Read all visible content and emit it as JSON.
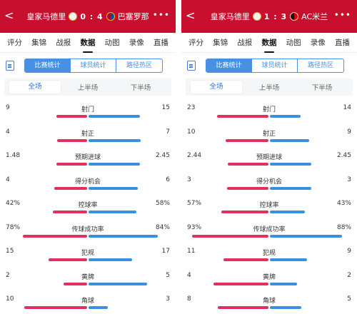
{
  "colors": {
    "header": "#c8102e",
    "home_bar": "#e0305f",
    "away_bar": "#3a8fdf",
    "accent": "#4a90e2"
  },
  "icons": {
    "back": "chevron-left-icon",
    "more": "more-dots-icon",
    "stats_doc": "document-icon"
  },
  "panels": [
    {
      "header": {
        "back": "<",
        "home": "皇家马德里",
        "score": "0 : 4",
        "away": "巴塞罗那",
        "more": "•••"
      },
      "tabs": [
        "评分",
        "集锦",
        "战报",
        "数据",
        "动图",
        "录像",
        "直播"
      ],
      "active_tab": 3,
      "subtabs": [
        "比赛统计",
        "球员统计",
        "路径热区"
      ],
      "periods": [
        "全场",
        "上半场",
        "下半场"
      ],
      "stats": [
        {
          "name": "射门",
          "home": "9",
          "away": "15",
          "home_frac": 0.375,
          "away_frac": 0.625
        },
        {
          "name": "射正",
          "home": "4",
          "away": "7",
          "home_frac": 0.364,
          "away_frac": 0.636
        },
        {
          "name": "预期进球",
          "home": "1.48",
          "away": "2.45",
          "home_frac": 0.377,
          "away_frac": 0.623
        },
        {
          "name": "得分机会",
          "home": "4",
          "away": "6",
          "home_frac": 0.4,
          "away_frac": 0.6
        },
        {
          "name": "控球率",
          "home": "42%",
          "away": "58%",
          "home_frac": 0.42,
          "away_frac": 0.58
        },
        {
          "name": "传球成功率",
          "home": "78%",
          "away": "84%",
          "home_frac": 0.78,
          "away_frac": 0.84
        },
        {
          "name": "犯规",
          "home": "15",
          "away": "17",
          "home_frac": 0.469,
          "away_frac": 0.531
        },
        {
          "name": "黄牌",
          "home": "2",
          "away": "5",
          "home_frac": 0.286,
          "away_frac": 0.714
        },
        {
          "name": "角球",
          "home": "10",
          "away": "3",
          "home_frac": 0.769,
          "away_frac": 0.231
        }
      ]
    },
    {
      "header": {
        "back": "<",
        "home": "皇家马德里",
        "score": "1 : 3",
        "away": "AC米兰",
        "more": "•••"
      },
      "tabs": [
        "评分",
        "集锦",
        "战报",
        "数据",
        "动图",
        "录像",
        "直播"
      ],
      "active_tab": 3,
      "subtabs": [
        "比赛统计",
        "球员统计",
        "路径热区"
      ],
      "periods": [
        "全场",
        "上半场",
        "下半场"
      ],
      "stats": [
        {
          "name": "射门",
          "home": "23",
          "away": "14",
          "home_frac": 0.622,
          "away_frac": 0.378
        },
        {
          "name": "射正",
          "home": "10",
          "away": "9",
          "home_frac": 0.526,
          "away_frac": 0.474
        },
        {
          "name": "预期进球",
          "home": "2.44",
          "away": "2.45",
          "home_frac": 0.499,
          "away_frac": 0.501
        },
        {
          "name": "得分机会",
          "home": "3",
          "away": "3",
          "home_frac": 0.5,
          "away_frac": 0.5
        },
        {
          "name": "控球率",
          "home": "57%",
          "away": "43%",
          "home_frac": 0.57,
          "away_frac": 0.43
        },
        {
          "name": "传球成功率",
          "home": "93%",
          "away": "88%",
          "home_frac": 0.93,
          "away_frac": 0.88
        },
        {
          "name": "犯规",
          "home": "11",
          "away": "9",
          "home_frac": 0.55,
          "away_frac": 0.45
        },
        {
          "name": "黄牌",
          "home": "4",
          "away": "2",
          "home_frac": 0.667,
          "away_frac": 0.333
        },
        {
          "name": "角球",
          "home": "8",
          "away": "5",
          "home_frac": 0.615,
          "away_frac": 0.385
        }
      ]
    }
  ]
}
